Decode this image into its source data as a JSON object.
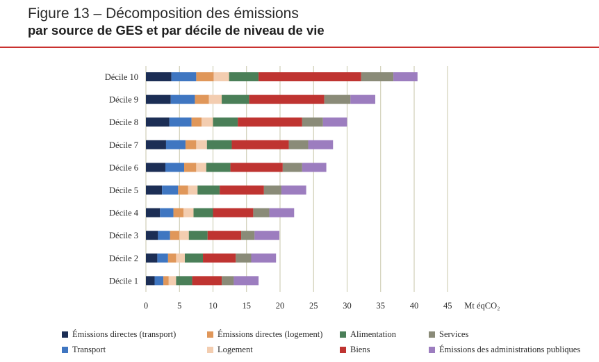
{
  "header": {
    "title": "Figure 13 – Décomposition des émissions",
    "subtitle": "par source de GES et par décile de niveau de vie"
  },
  "colors": {
    "rule": "#c9312f",
    "series": [
      "#1c2e55",
      "#3f76c1",
      "#e0975a",
      "#f3cdb0",
      "#4a7f58",
      "#bf3431",
      "#8a8b78",
      "#9c7dbf"
    ],
    "gridline": "#c7c6a8"
  },
  "chart_data": {
    "type": "bar",
    "orientation": "horizontal",
    "stacked": true,
    "unit_label": "Mt éqCO₂",
    "xlim": [
      0,
      45
    ],
    "xticks": [
      "0",
      "5",
      "10",
      "15",
      "20",
      "25",
      "30",
      "35",
      "40",
      "45"
    ],
    "grid": true,
    "legend_position": "bottom",
    "categories": [
      "Décile 10",
      "Décile 9",
      "Décile 8",
      "Décile 7",
      "Décile 6",
      "Décile 5",
      "Décile 4",
      "Décile 3",
      "Décile 2",
      "Décile 1"
    ],
    "series": [
      {
        "name": "Émissions directes (transport)",
        "values": [
          3.8,
          3.7,
          3.5,
          3.0,
          2.9,
          2.4,
          2.1,
          1.8,
          1.7,
          1.3
        ]
      },
      {
        "name": "Transport",
        "values": [
          3.7,
          3.6,
          3.3,
          2.9,
          2.8,
          2.4,
          2.0,
          1.8,
          1.6,
          1.3
        ]
      },
      {
        "name": "Émissions directes (logement)",
        "values": [
          2.6,
          2.1,
          1.5,
          1.6,
          1.8,
          1.5,
          1.5,
          1.4,
          1.2,
          0.8
        ]
      },
      {
        "name": "Logement",
        "values": [
          2.3,
          1.9,
          1.7,
          1.6,
          1.5,
          1.4,
          1.5,
          1.4,
          1.3,
          1.1
        ]
      },
      {
        "name": "Alimentation",
        "values": [
          4.4,
          4.1,
          3.7,
          3.7,
          3.6,
          3.3,
          2.9,
          2.8,
          2.7,
          2.4
        ]
      },
      {
        "name": "Biens",
        "values": [
          15.3,
          11.2,
          9.6,
          8.5,
          7.8,
          6.6,
          6.0,
          5.0,
          4.9,
          4.4
        ]
      },
      {
        "name": "Services",
        "values": [
          4.8,
          3.9,
          3.1,
          2.9,
          2.9,
          2.6,
          2.4,
          2.0,
          2.3,
          1.8
        ]
      },
      {
        "name": "Émissions des administrations publiques",
        "values": [
          3.6,
          3.7,
          3.6,
          3.7,
          3.6,
          3.7,
          3.7,
          3.7,
          3.7,
          3.7
        ]
      }
    ],
    "legend_order": [
      0,
      2,
      4,
      6,
      1,
      3,
      5,
      7
    ]
  }
}
